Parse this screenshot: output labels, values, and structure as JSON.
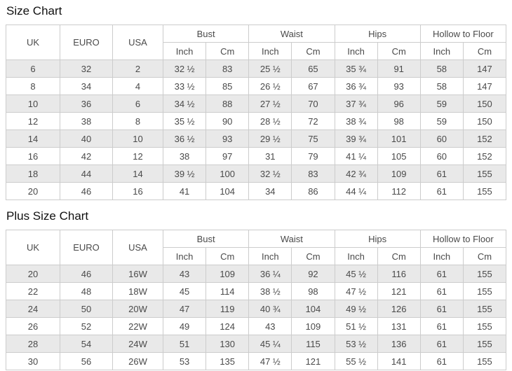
{
  "page": {
    "size_chart_title": "Size Chart",
    "plus_size_chart_title": "Plus Size Chart"
  },
  "colors": {
    "border": "#cccccc",
    "shaded_row": "#e9e9e9",
    "text": "#4a4a4a",
    "title_text": "#111111",
    "background": "#ffffff"
  },
  "chart_data": [
    {
      "type": "table",
      "title": "Size Chart",
      "simple_columns": [
        "UK",
        "EURO",
        "USA"
      ],
      "column_groups": [
        {
          "label": "Bust",
          "sub": [
            "Inch",
            "Cm"
          ]
        },
        {
          "label": "Waist",
          "sub": [
            "Inch",
            "Cm"
          ]
        },
        {
          "label": "Hips",
          "sub": [
            "Inch",
            "Cm"
          ]
        },
        {
          "label": "Hollow to Floor",
          "sub": [
            "Inch",
            "Cm"
          ]
        }
      ],
      "rows": [
        [
          "6",
          "32",
          "2",
          "32 ½",
          "83",
          "25 ½",
          "65",
          "35 ¾",
          "91",
          "58",
          "147"
        ],
        [
          "8",
          "34",
          "4",
          "33 ½",
          "85",
          "26 ½",
          "67",
          "36 ¾",
          "93",
          "58",
          "147"
        ],
        [
          "10",
          "36",
          "6",
          "34 ½",
          "88",
          "27 ½",
          "70",
          "37 ¾",
          "96",
          "59",
          "150"
        ],
        [
          "12",
          "38",
          "8",
          "35 ½",
          "90",
          "28 ½",
          "72",
          "38 ¾",
          "98",
          "59",
          "150"
        ],
        [
          "14",
          "40",
          "10",
          "36 ½",
          "93",
          "29 ½",
          "75",
          "39 ¾",
          "101",
          "60",
          "152"
        ],
        [
          "16",
          "42",
          "12",
          "38",
          "97",
          "31",
          "79",
          "41 ¼",
          "105",
          "60",
          "152"
        ],
        [
          "18",
          "44",
          "14",
          "39 ½",
          "100",
          "32 ½",
          "83",
          "42 ¾",
          "109",
          "61",
          "155"
        ],
        [
          "20",
          "46",
          "16",
          "41",
          "104",
          "34",
          "86",
          "44 ¼",
          "112",
          "61",
          "155"
        ]
      ]
    },
    {
      "type": "table",
      "title": "Plus Size Chart",
      "simple_columns": [
        "UK",
        "EURO",
        "USA"
      ],
      "column_groups": [
        {
          "label": "Bust",
          "sub": [
            "Inch",
            "Cm"
          ]
        },
        {
          "label": "Waist",
          "sub": [
            "Inch",
            "Cm"
          ]
        },
        {
          "label": "Hips",
          "sub": [
            "Inch",
            "Cm"
          ]
        },
        {
          "label": "Hollow to Floor",
          "sub": [
            "Inch",
            "Cm"
          ]
        }
      ],
      "rows": [
        [
          "20",
          "46",
          "16W",
          "43",
          "109",
          "36 ¼",
          "92",
          "45 ½",
          "116",
          "61",
          "155"
        ],
        [
          "22",
          "48",
          "18W",
          "45",
          "114",
          "38 ½",
          "98",
          "47 ½",
          "121",
          "61",
          "155"
        ],
        [
          "24",
          "50",
          "20W",
          "47",
          "119",
          "40 ¾",
          "104",
          "49 ½",
          "126",
          "61",
          "155"
        ],
        [
          "26",
          "52",
          "22W",
          "49",
          "124",
          "43",
          "109",
          "51 ½",
          "131",
          "61",
          "155"
        ],
        [
          "28",
          "54",
          "24W",
          "51",
          "130",
          "45 ¼",
          "115",
          "53 ½",
          "136",
          "61",
          "155"
        ],
        [
          "30",
          "56",
          "26W",
          "53",
          "135",
          "47 ½",
          "121",
          "55 ½",
          "141",
          "61",
          "155"
        ]
      ]
    }
  ]
}
